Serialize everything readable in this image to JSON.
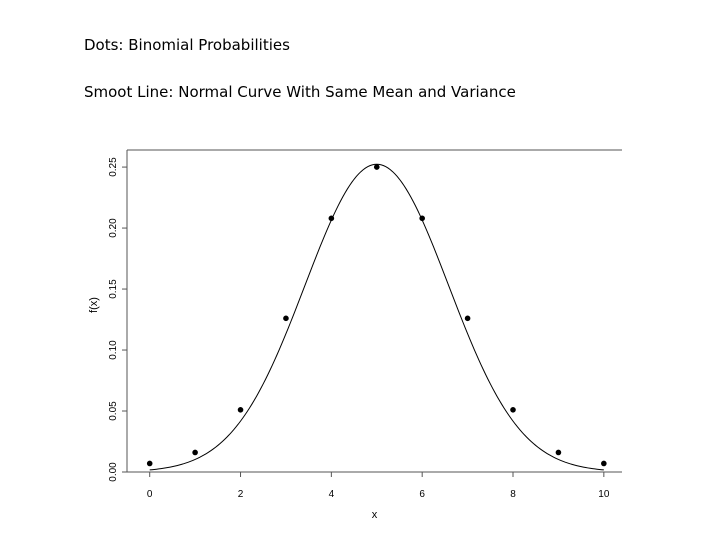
{
  "captions": {
    "line1": "Dots: Binomial Probabilities",
    "line2": "Smoot Line: Normal Curve With Same Mean and Variance"
  },
  "chart_data": {
    "type": "scatter",
    "xlabel": "x",
    "ylabel": "f(x)",
    "xlim": [
      -0.5,
      10.4
    ],
    "ylim": [
      0,
      0.264
    ],
    "x_ticks": [
      0,
      2,
      4,
      6,
      8,
      10
    ],
    "x_tick_labels": [
      "0",
      "2",
      "4",
      "6",
      "8",
      "10"
    ],
    "y_ticks": [
      0.0,
      0.05,
      0.1,
      0.15,
      0.2,
      0.25
    ],
    "y_tick_labels": [
      "0.00",
      "0.05",
      "0.10",
      "0.15",
      "0.20",
      "0.25"
    ],
    "series": [
      {
        "type": "scatter",
        "x": [
          0,
          1,
          2,
          3,
          4,
          5,
          6,
          7,
          8,
          9,
          10
        ],
        "y": [
          0.007,
          0.016,
          0.051,
          0.126,
          0.208,
          0.25,
          0.208,
          0.126,
          0.051,
          0.016,
          0.007
        ]
      },
      {
        "type": "line",
        "mean": 5,
        "variance": 2.5,
        "x_range": [
          0,
          10
        ]
      }
    ],
    "grid": false,
    "legend": "none"
  }
}
